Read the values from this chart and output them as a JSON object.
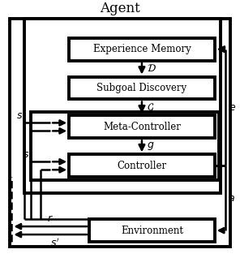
{
  "title": "Agent",
  "lw_thick": 2.8,
  "lw_med": 1.8,
  "lw_thin": 1.4,
  "font_size_title": 12,
  "font_size_box": 8.5,
  "font_size_label": 9,
  "bg": "white",
  "em_label": "Experience Memory",
  "sd_label": "Subgoal Discovery",
  "mc_label": "Meta-Controller",
  "ct_label": "Controller",
  "ev_label": "Environment"
}
